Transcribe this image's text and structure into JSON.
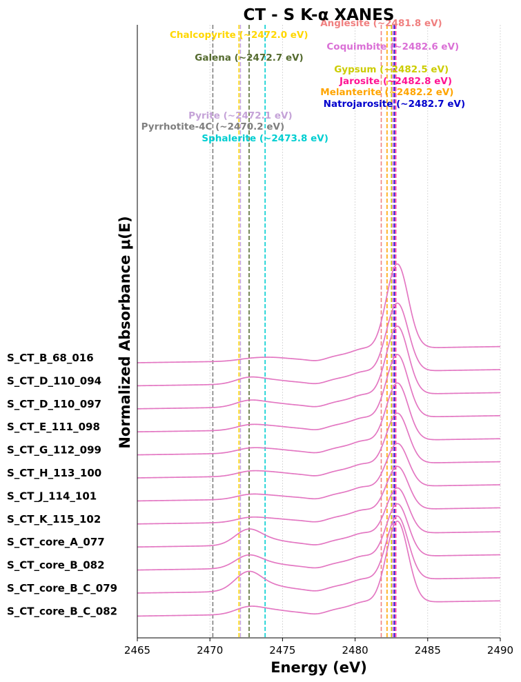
{
  "chart_data": {
    "type": "line",
    "title": "CT - S K-α XANES",
    "xlabel": "Energy (eV)",
    "ylabel": "Normalized Absorbance μ(E)",
    "xlim": [
      2465,
      2490
    ],
    "x_ticks": [
      2465,
      2470,
      2475,
      2480,
      2485,
      2490
    ],
    "grid": "x-only, dotted",
    "line_color": "#e377c2",
    "samples": [
      {
        "name": "S_CT_B_68_016",
        "pre_edge": 0.08,
        "shoulder": 0.35,
        "peak": 4.8,
        "post": 0.6
      },
      {
        "name": "S_CT_D_110_094",
        "pre_edge": 0.3,
        "shoulder": 0.4,
        "peak": 3.9,
        "post": 0.6
      },
      {
        "name": "S_CT_D_110_097",
        "pre_edge": 0.3,
        "shoulder": 0.4,
        "peak": 3.9,
        "post": 0.6
      },
      {
        "name": "S_CT_E_111_098",
        "pre_edge": 0.22,
        "shoulder": 0.4,
        "peak": 3.6,
        "post": 0.6
      },
      {
        "name": "S_CT_G_112_099",
        "pre_edge": 0.2,
        "shoulder": 0.4,
        "peak": 3.3,
        "post": 0.6
      },
      {
        "name": "S_CT_H_113_100",
        "pre_edge": 0.2,
        "shoulder": 0.4,
        "peak": 2.9,
        "post": 0.6
      },
      {
        "name": "S_CT_J_114_101",
        "pre_edge": 0.2,
        "shoulder": 0.35,
        "peak": 2.5,
        "post": 0.6
      },
      {
        "name": "S_CT_K_115_102",
        "pre_edge": 0.2,
        "shoulder": 0.35,
        "peak": 2.5,
        "post": 0.6
      },
      {
        "name": "S_CT_core_A_077",
        "pre_edge": 0.8,
        "shoulder": 0.5,
        "peak": 2.6,
        "post": 0.55
      },
      {
        "name": "S_CT_core_B_082",
        "pre_edge": 0.65,
        "shoulder": 0.45,
        "peak": 3.0,
        "post": 0.55
      },
      {
        "name": "S_CT_core_B_C_079",
        "pre_edge": 1.0,
        "shoulder": 0.55,
        "peak": 3.6,
        "post": 0.55
      },
      {
        "name": "S_CT_core_B_C_082",
        "pre_edge": 0.35,
        "shoulder": 0.45,
        "peak": 4.6,
        "post": 0.55
      }
    ],
    "references": [
      {
        "name": "Pyrrhotite-4C (~2470.2 eV)",
        "energy": 2470.2,
        "color": "#7f7f7f"
      },
      {
        "name": "Chalcopyrite (~2472.0 eV)",
        "energy": 2472.0,
        "color": "#ffd700"
      },
      {
        "name": "Pyrite (~2472.1 eV)",
        "energy": 2472.1,
        "color": "#c5a3d8"
      },
      {
        "name": "Galena (~2472.7 eV)",
        "energy": 2472.7,
        "color": "#556b2f"
      },
      {
        "name": "Sphalerite (~2473.8 eV)",
        "energy": 2473.8,
        "color": "#00ced1"
      },
      {
        "name": "Anglesite (~2481.8 eV)",
        "energy": 2481.8,
        "color": "#f08080"
      },
      {
        "name": "Melanterite (~2482.2 eV)",
        "energy": 2482.2,
        "color": "#ffa500"
      },
      {
        "name": "Gypsum (~2482.5 eV)",
        "energy": 2482.5,
        "color": "#cccc00"
      },
      {
        "name": "Coquimbite (~2482.6 eV)",
        "energy": 2482.6,
        "color": "#da70d6"
      },
      {
        "name": "Natrojarosite (~2482.7 eV)",
        "energy": 2482.7,
        "color": "#0000cd"
      },
      {
        "name": "Jarosite (~2482.8 eV)",
        "energy": 2482.8,
        "color": "#ff1493"
      }
    ]
  }
}
